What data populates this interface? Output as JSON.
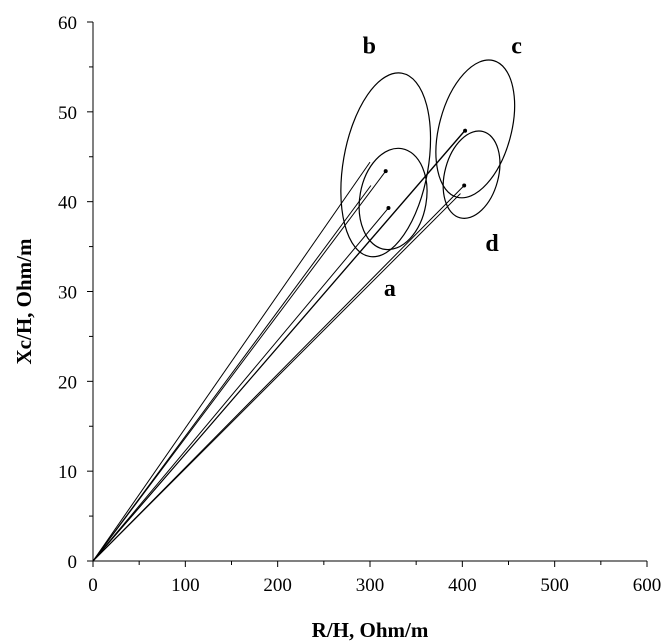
{
  "chart_data": {
    "type": "scatter",
    "xlabel": "R/H, Ohm/m",
    "ylabel": "Xc/H, Ohm/m",
    "xlim": [
      0,
      600
    ],
    "ylim": [
      0,
      60
    ],
    "x_ticks": [
      "0",
      "100",
      "200",
      "300",
      "400",
      "500",
      "600"
    ],
    "y_ticks": [
      "0",
      "10",
      "20",
      "30",
      "40",
      "50",
      "60"
    ],
    "grid": false,
    "legend": "none",
    "series": [
      {
        "label": "a",
        "point": {
          "x": 320,
          "y": 39.3
        },
        "ellipse": {
          "center": [
            325,
            40.3
          ],
          "semi_axis_x": 36,
          "semi_axis_y": 5.6,
          "angle_deg": 80
        },
        "label_pos": {
          "x": 315,
          "y": 29.5
        }
      },
      {
        "label": "b",
        "point": {
          "x": 317,
          "y": 43.4
        },
        "ellipse": {
          "center": [
            317,
            44.1
          ],
          "semi_axis_x": 46,
          "semi_axis_y": 10.2,
          "angle_deg": 80
        },
        "label_pos": {
          "x": 292,
          "y": 56.5
        }
      },
      {
        "label": "c",
        "point": {
          "x": 403,
          "y": 47.9
        },
        "ellipse": {
          "center": [
            414,
            48.1
          ],
          "semi_axis_x": 39,
          "semi_axis_y": 7.6,
          "angle_deg": 75
        },
        "label_pos": {
          "x": 453,
          "y": 56.5
        }
      },
      {
        "label": "d",
        "point": {
          "x": 402,
          "y": 41.8
        },
        "ellipse": {
          "center": [
            410,
            43
          ],
          "semi_axis_x": 29,
          "semi_axis_y": 4.8,
          "angle_deg": 75
        },
        "label_pos": {
          "x": 425,
          "y": 34.5
        }
      }
    ],
    "tangent_lines": [
      {
        "from": [
          0,
          0
        ],
        "to": [
          301,
          41.8
        ]
      },
      {
        "from": [
          0,
          0
        ],
        "to": [
          300,
          44.4
        ]
      },
      {
        "from": [
          0,
          0
        ],
        "to": [
          404,
          48.1
        ]
      },
      {
        "from": [
          0,
          0
        ],
        "to": [
          398,
          40.9
        ]
      }
    ]
  },
  "colors": {
    "ink": "#000000",
    "background": "#ffffff"
  }
}
